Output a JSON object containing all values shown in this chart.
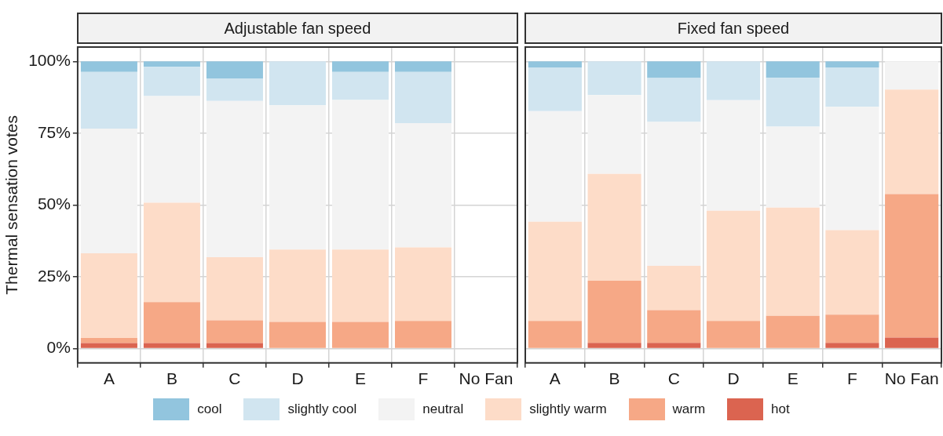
{
  "chart_data": [
    {
      "type": "bar",
      "title": "Adjustable fan speed",
      "ylabel": "Thermal sensation votes",
      "stacked": true,
      "grid": true,
      "legend": "bottom",
      "categories": [
        "A",
        "B",
        "C",
        "D",
        "E",
        "F",
        "No Fan"
      ],
      "ylim": [
        -5,
        105
      ],
      "yticks": [
        {
          "value": 0,
          "label": "0%"
        },
        {
          "value": 25,
          "label": "25%"
        },
        {
          "value": 50,
          "label": "50%"
        },
        {
          "value": 75,
          "label": "75%"
        },
        {
          "value": 100,
          "label": "100%"
        }
      ],
      "series": [
        {
          "name": "hot",
          "color": "#db6450",
          "values": [
            1.9,
            1.9,
            1.9,
            0,
            0,
            0,
            null
          ]
        },
        {
          "name": "warm",
          "color": "#f6a886",
          "values": [
            1.8,
            14.3,
            7.9,
            9.3,
            9.3,
            9.6,
            null
          ]
        },
        {
          "name": "slightly warm",
          "color": "#fddcc8",
          "values": [
            29.5,
            34.6,
            22.0,
            25.2,
            25.2,
            25.6,
            null
          ]
        },
        {
          "name": "neutral",
          "color": "#f3f3f3",
          "values": [
            43.4,
            37.1,
            54.4,
            50.2,
            52.1,
            43.3,
            null
          ]
        },
        {
          "name": "slightly cool",
          "color": "#d1e5f0",
          "values": [
            19.7,
            10.2,
            7.9,
            15.3,
            9.7,
            17.8,
            null
          ]
        },
        {
          "name": "cool",
          "color": "#92c5de",
          "values": [
            3.7,
            1.9,
            5.9,
            0,
            3.7,
            3.7,
            null
          ]
        }
      ]
    },
    {
      "type": "bar",
      "title": "Fixed fan speed",
      "stacked": true,
      "grid": true,
      "tick_labels": "x",
      "categories": [
        "A",
        "B",
        "C",
        "D",
        "E",
        "F",
        "No Fan"
      ],
      "ylim": [
        -5,
        105
      ],
      "yticks": [
        {
          "value": 0,
          "label": null
        },
        {
          "value": 25,
          "label": null
        },
        {
          "value": 50,
          "label": null
        },
        {
          "value": 75,
          "label": null
        },
        {
          "value": 100,
          "label": null
        }
      ],
      "series": [
        {
          "color": "#db6450",
          "values": [
            0,
            2.0,
            2.0,
            0,
            0,
            2.0,
            3.8
          ]
        },
        {
          "color": "#f6a886",
          "values": [
            9.6,
            21.6,
            11.4,
            9.6,
            11.4,
            9.8,
            50.0
          ]
        },
        {
          "color": "#fddcc8",
          "values": [
            34.6,
            37.2,
            15.4,
            38.4,
            37.7,
            29.4,
            36.4
          ]
        },
        {
          "color": "#f3f3f3",
          "values": [
            38.5,
            27.5,
            50.1,
            38.5,
            28.2,
            43.0,
            9.8
          ]
        },
        {
          "color": "#d1e5f0",
          "values": [
            15.2,
            11.7,
            15.3,
            13.5,
            17.0,
            13.7,
            0
          ]
        },
        {
          "color": "#92c5de",
          "values": [
            2.1,
            0,
            5.8,
            0,
            5.7,
            2.1,
            0
          ]
        }
      ]
    }
  ]
}
